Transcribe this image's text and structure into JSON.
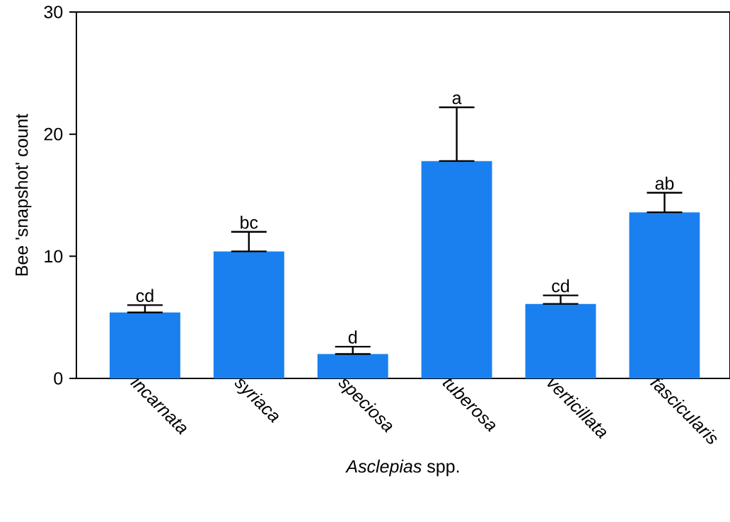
{
  "chart_data": {
    "type": "bar",
    "xlabel": "*Asclepias* spp.",
    "ylabel": "Bee 'snapshot' count",
    "categories": [
      "incarnata",
      "syriaca",
      "speciosa",
      "tuberosa",
      "verticillata",
      "fascicularis"
    ],
    "values": [
      5.4,
      10.4,
      2.0,
      17.8,
      6.1,
      13.6
    ],
    "errors": [
      [
        5.4,
        6.0
      ],
      [
        10.4,
        12.0
      ],
      [
        2.0,
        2.6
      ],
      [
        17.8,
        22.2
      ],
      [
        6.1,
        6.8
      ],
      [
        13.6,
        15.2
      ]
    ],
    "color": "#1a80ef",
    "ylim": [
      0,
      30
    ],
    "yticks": [
      0,
      10,
      20,
      30
    ],
    "annotations": [
      "cd",
      "bc",
      "d",
      "a",
      "cd",
      "ab"
    ]
  }
}
